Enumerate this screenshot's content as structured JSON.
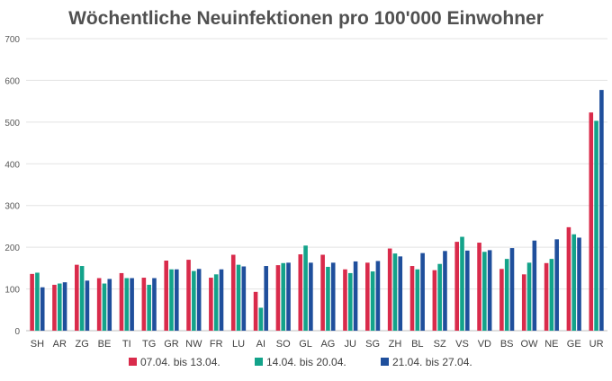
{
  "chart_data": {
    "type": "bar",
    "title": "Wöchentliche Neuinfektionen pro 100'000 Einwohner",
    "xlabel": "",
    "ylabel": "",
    "ylim": [
      0,
      700
    ],
    "yticks": [
      0,
      100,
      200,
      300,
      400,
      500,
      600,
      700
    ],
    "grid": true,
    "legend_position": "bottom",
    "categories": [
      "SH",
      "AR",
      "ZG",
      "BE",
      "TI",
      "TG",
      "GR",
      "NW",
      "FR",
      "LU",
      "AI",
      "SO",
      "GL",
      "AG",
      "JU",
      "SG",
      "ZH",
      "BL",
      "SZ",
      "VS",
      "VD",
      "BS",
      "OW",
      "NE",
      "GE",
      "UR"
    ],
    "series": [
      {
        "name": "07.04. bis 13.04.",
        "color": "#d92b4b",
        "values": [
          136,
          110,
          158,
          126,
          138,
          127,
          168,
          170,
          127,
          182,
          93,
          157,
          183,
          182,
          147,
          163,
          197,
          155,
          145,
          213,
          211,
          148,
          135,
          162,
          248,
          523
        ]
      },
      {
        "name": "14.04. bis 20.04.",
        "color": "#13a38a",
        "values": [
          139,
          113,
          155,
          113,
          126,
          110,
          147,
          143,
          135,
          158,
          55,
          162,
          204,
          153,
          138,
          142,
          185,
          147,
          160,
          225,
          189,
          172,
          163,
          172,
          231,
          503
        ]
      },
      {
        "name": "21.04. bis 27.04.",
        "color": "#1f4f9c",
        "values": [
          104,
          116,
          120,
          124,
          126,
          126,
          147,
          148,
          147,
          154,
          155,
          163,
          163,
          163,
          166,
          167,
          178,
          186,
          191,
          192,
          193,
          198,
          216,
          219,
          223,
          577
        ]
      }
    ]
  }
}
